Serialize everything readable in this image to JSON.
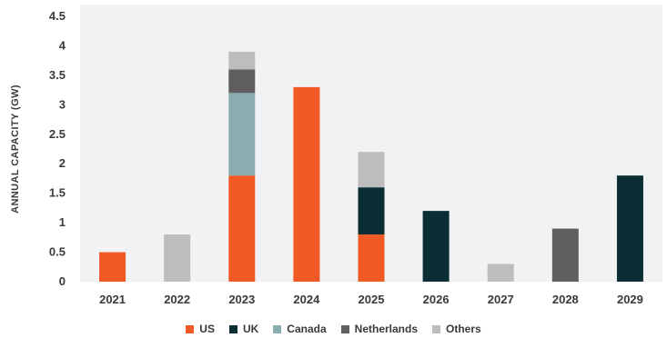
{
  "chart_data": {
    "type": "bar",
    "stacked": true,
    "categories": [
      "2021",
      "2022",
      "2023",
      "2024",
      "2025",
      "2026",
      "2027",
      "2028",
      "2029"
    ],
    "series": [
      {
        "name": "US",
        "color": "#f15a24",
        "values": [
          0.5,
          0,
          1.8,
          3.3,
          0.8,
          0,
          0,
          0,
          0
        ]
      },
      {
        "name": "UK",
        "color": "#0b2e35",
        "values": [
          0,
          0,
          0,
          0,
          0.8,
          1.2,
          0,
          0,
          1.8
        ]
      },
      {
        "name": "Canada",
        "color": "#8aaeb0",
        "values": [
          0,
          0,
          1.4,
          0,
          0,
          0,
          0,
          0,
          0
        ]
      },
      {
        "name": "Netherlands",
        "color": "#5f5f5f",
        "values": [
          0,
          0,
          0.4,
          0,
          0,
          0,
          0,
          0.9,
          0
        ]
      },
      {
        "name": "Others",
        "color": "#bdbdbd",
        "values": [
          0,
          0.8,
          0.3,
          0,
          0.6,
          0,
          0.3,
          0,
          0
        ]
      }
    ],
    "yticks": [
      "0",
      "0.5",
      "1",
      "1.5",
      "2",
      "2.5",
      "3",
      "3.5",
      "4",
      "4.5"
    ],
    "ylim": [
      0,
      4.5
    ],
    "ylabel": "ANNUAL CAPACITY (GW)",
    "xlabel": "",
    "title": "",
    "grid": false,
    "legend": "bottom-center"
  }
}
